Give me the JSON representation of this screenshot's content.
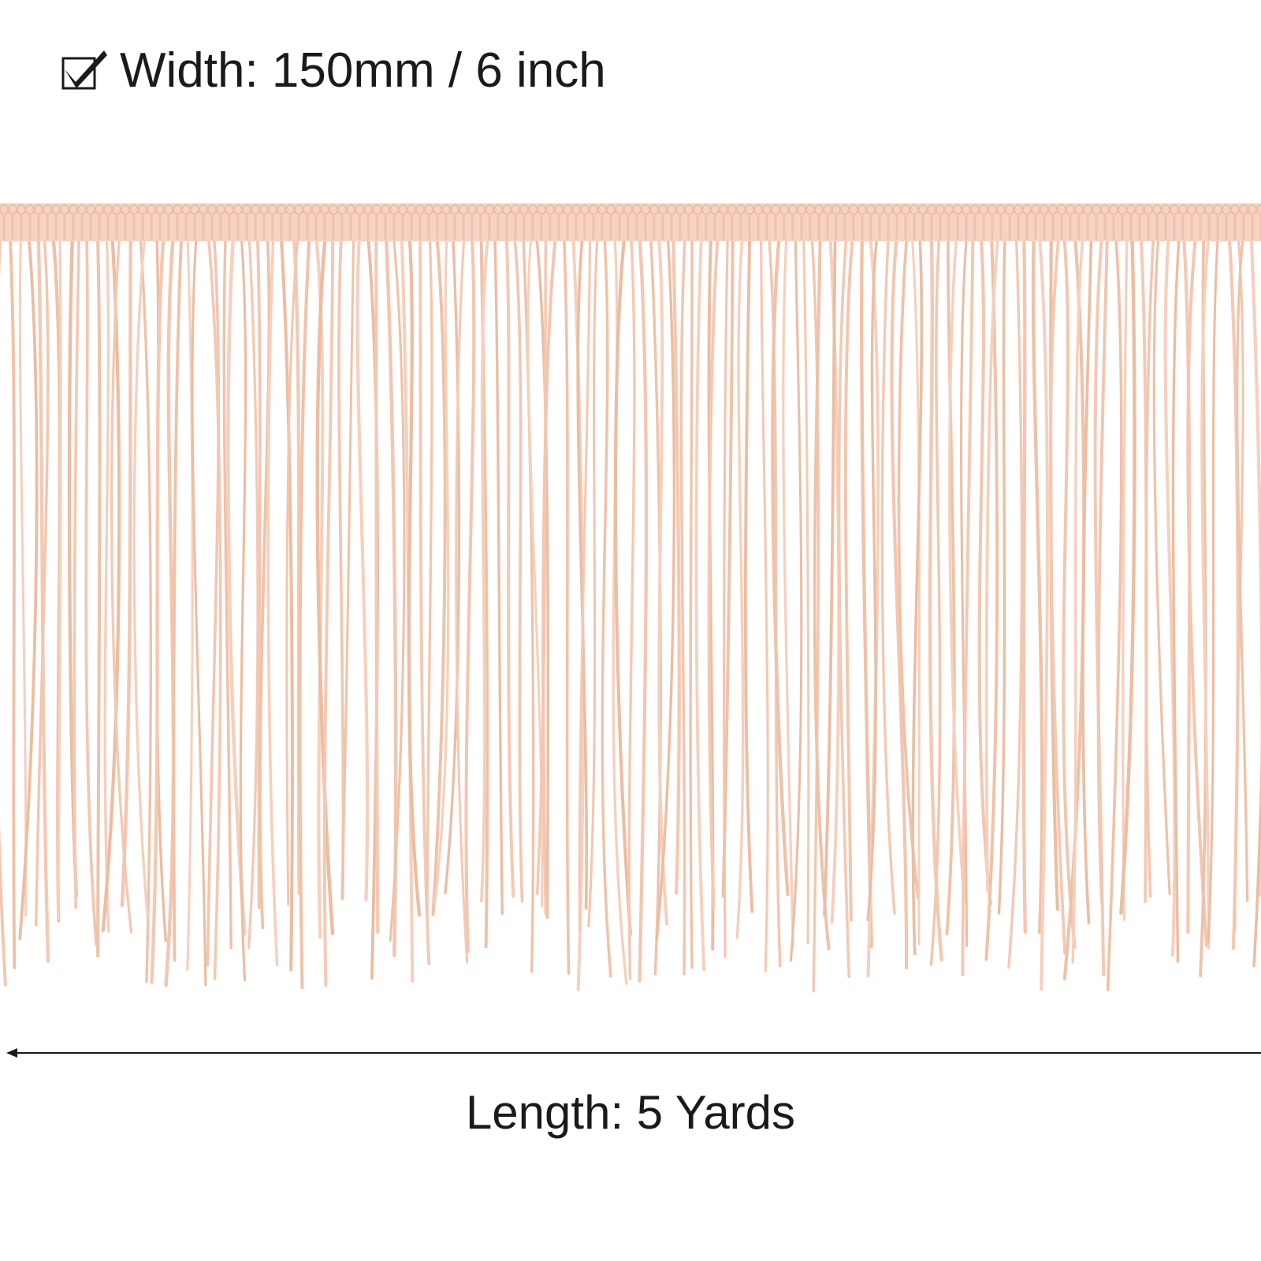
{
  "header": {
    "title": "Width: 150mm / 6 inch"
  },
  "footer": {
    "label": "Length: 5 Yards"
  }
}
